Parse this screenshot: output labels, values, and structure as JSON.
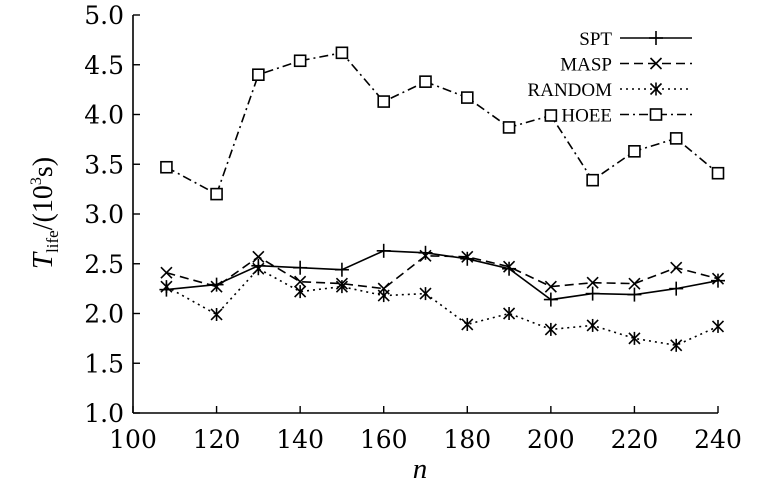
{
  "chart_data": {
    "type": "line",
    "title": "",
    "xlabel": "n",
    "ylabel": {
      "main": "T",
      "subscript": "life",
      "middle": "/(10",
      "superscript": "3",
      "end": "s)"
    },
    "xlim": [
      100,
      240
    ],
    "ylim": [
      1.0,
      5.0
    ],
    "xticks": [
      100,
      120,
      140,
      160,
      180,
      200,
      220,
      240
    ],
    "yticks": [
      "1.0",
      "1.5",
      "2.0",
      "2.5",
      "3.0",
      "3.5",
      "4.0",
      "4.5",
      "5.0"
    ],
    "grid": false,
    "legend_position": "top-right",
    "x": [
      108,
      120,
      130,
      140,
      150,
      160,
      170,
      180,
      190,
      200,
      210,
      220,
      230,
      240
    ],
    "series": [
      {
        "name": "SPT",
        "marker": "plus",
        "dash": "solid",
        "color": "#000000",
        "values": [
          2.24,
          2.29,
          2.48,
          2.46,
          2.44,
          2.63,
          2.61,
          2.55,
          2.45,
          2.14,
          2.2,
          2.19,
          2.25,
          2.33
        ]
      },
      {
        "name": "MASP",
        "marker": "x",
        "dash": "dashed",
        "color": "#000000",
        "values": [
          2.41,
          2.27,
          2.57,
          2.32,
          2.3,
          2.25,
          2.58,
          2.57,
          2.47,
          2.27,
          2.31,
          2.3,
          2.46,
          2.35
        ]
      },
      {
        "name": "RANDOM",
        "marker": "asterisk",
        "dash": "dotted",
        "color": "#000000",
        "values": [
          2.27,
          1.99,
          2.45,
          2.22,
          2.27,
          2.18,
          2.2,
          1.89,
          2.0,
          1.84,
          1.88,
          1.75,
          1.68,
          1.87
        ]
      },
      {
        "name": "HOEE",
        "marker": "square",
        "dash": "dashdot",
        "color": "#000000",
        "values": [
          3.47,
          3.2,
          4.4,
          4.54,
          4.62,
          4.13,
          4.33,
          4.17,
          3.87,
          3.99,
          3.34,
          3.63,
          3.76,
          3.41
        ]
      }
    ]
  }
}
